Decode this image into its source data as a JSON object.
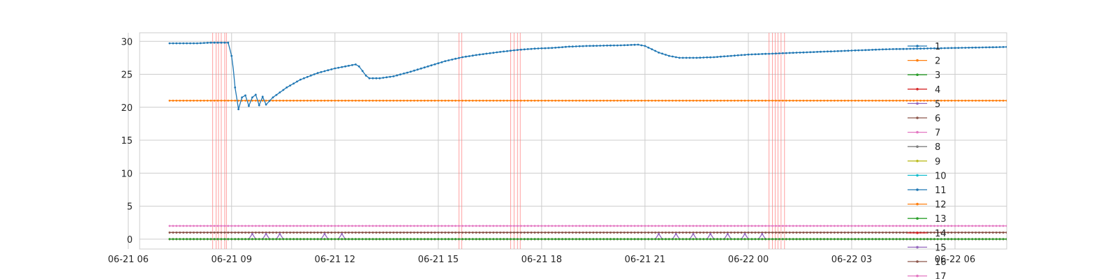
{
  "chart_data": {
    "type": "line",
    "title": "",
    "xlabel": "",
    "ylabel": "",
    "xlim_hours": [
      6.33,
      31.5
    ],
    "ylim": [
      -1.5,
      31.3
    ],
    "grid": true,
    "x_ticks": [
      {
        "label": "06-21 06",
        "hours": 6
      },
      {
        "label": "06-21 09",
        "hours": 9
      },
      {
        "label": "06-21 12",
        "hours": 12
      },
      {
        "label": "06-21 15",
        "hours": 15
      },
      {
        "label": "06-21 18",
        "hours": 18
      },
      {
        "label": "06-21 21",
        "hours": 21
      },
      {
        "label": "06-22 00",
        "hours": 24
      },
      {
        "label": "06-22 03",
        "hours": 27
      },
      {
        "label": "06-22 06",
        "hours": 30
      }
    ],
    "y_ticks": [
      {
        "label": "0",
        "value": 0
      },
      {
        "label": "5",
        "value": 5
      },
      {
        "label": "10",
        "value": 10
      },
      {
        "label": "15",
        "value": 15
      },
      {
        "label": "20",
        "value": 20
      },
      {
        "label": "25",
        "value": 25
      },
      {
        "label": "30",
        "value": 30
      }
    ],
    "event_markers_hours": [
      8.45,
      8.55,
      8.62,
      8.7,
      8.8,
      8.85,
      15.6,
      15.68,
      17.1,
      17.2,
      17.3,
      17.38,
      24.6,
      24.7,
      24.78,
      24.86,
      24.95,
      25.05
    ],
    "legend_position": "right",
    "legend_partially_clipped": true,
    "series": [
      {
        "name": "1",
        "color": "#1f77b4",
        "points": [
          [
            7.2,
            29.7
          ],
          [
            8.0,
            29.7
          ],
          [
            8.4,
            29.8
          ],
          [
            8.9,
            29.8
          ],
          [
            9.0,
            27.8
          ],
          [
            9.05,
            25.8
          ],
          [
            9.1,
            23.0
          ],
          [
            9.2,
            19.7
          ],
          [
            9.3,
            21.5
          ],
          [
            9.4,
            21.8
          ],
          [
            9.5,
            20.2
          ],
          [
            9.6,
            21.5
          ],
          [
            9.7,
            21.9
          ],
          [
            9.8,
            20.3
          ],
          [
            9.9,
            21.6
          ],
          [
            10.0,
            20.4
          ],
          [
            10.2,
            21.5
          ],
          [
            10.6,
            23.0
          ],
          [
            11.0,
            24.2
          ],
          [
            11.5,
            25.2
          ],
          [
            12.0,
            25.9
          ],
          [
            12.4,
            26.3
          ],
          [
            12.6,
            26.5
          ],
          [
            12.7,
            26.2
          ],
          [
            12.8,
            25.5
          ],
          [
            12.9,
            24.8
          ],
          [
            13.0,
            24.4
          ],
          [
            13.3,
            24.4
          ],
          [
            13.7,
            24.7
          ],
          [
            14.2,
            25.4
          ],
          [
            14.7,
            26.2
          ],
          [
            15.2,
            27.0
          ],
          [
            15.7,
            27.6
          ],
          [
            16.2,
            28.0
          ],
          [
            16.8,
            28.4
          ],
          [
            17.3,
            28.7
          ],
          [
            17.8,
            28.9
          ],
          [
            18.3,
            29.0
          ],
          [
            18.8,
            29.2
          ],
          [
            19.3,
            29.3
          ],
          [
            20.3,
            29.4
          ],
          [
            20.8,
            29.5
          ],
          [
            21.0,
            29.3
          ],
          [
            21.2,
            28.8
          ],
          [
            21.4,
            28.3
          ],
          [
            21.7,
            27.8
          ],
          [
            22.0,
            27.5
          ],
          [
            22.5,
            27.5
          ],
          [
            23.0,
            27.6
          ],
          [
            23.5,
            27.8
          ],
          [
            24.0,
            28.0
          ],
          [
            25.0,
            28.2
          ],
          [
            26.0,
            28.4
          ],
          [
            27.0,
            28.6
          ],
          [
            28.0,
            28.8
          ],
          [
            29.0,
            28.9
          ],
          [
            30.0,
            29.0
          ],
          [
            31.0,
            29.1
          ],
          [
            32.0,
            29.2
          ],
          [
            33.0,
            29.3
          ],
          [
            34.0,
            29.4
          ],
          [
            35.0,
            29.5
          ],
          [
            36.0,
            29.5
          ],
          [
            37.0,
            29.4
          ],
          [
            38.0,
            29.4
          ],
          [
            38.6,
            29.3
          ]
        ]
      },
      {
        "name": "2",
        "color": "#ff7f0e",
        "points": [
          [
            7.2,
            21.0
          ],
          [
            38.6,
            21.0
          ]
        ]
      },
      {
        "name": "3",
        "color": "#2ca02c",
        "points": [
          [
            7.2,
            0.0
          ],
          [
            38.6,
            0.0
          ]
        ]
      },
      {
        "name": "4",
        "color": "#d62728",
        "points": [
          [
            7.2,
            0.0
          ],
          [
            38.6,
            0.0
          ]
        ]
      },
      {
        "name": "5",
        "color": "#9467bd",
        "points": [
          [
            7.2,
            0.0
          ],
          [
            9.5,
            0.0
          ],
          [
            9.6,
            0.8
          ],
          [
            9.7,
            0.0
          ],
          [
            9.9,
            0.0
          ],
          [
            10.0,
            0.8
          ],
          [
            10.1,
            0.0
          ],
          [
            10.3,
            0.0
          ],
          [
            10.4,
            0.8
          ],
          [
            10.5,
            0.0
          ],
          [
            11.6,
            0.0
          ],
          [
            11.7,
            0.8
          ],
          [
            11.8,
            0.0
          ],
          [
            12.1,
            0.0
          ],
          [
            12.2,
            0.8
          ],
          [
            12.3,
            0.0
          ],
          [
            21.3,
            0.0
          ],
          [
            21.4,
            0.8
          ],
          [
            21.5,
            0.0
          ],
          [
            21.8,
            0.0
          ],
          [
            21.9,
            0.8
          ],
          [
            22.0,
            0.0
          ],
          [
            22.3,
            0.0
          ],
          [
            22.4,
            0.8
          ],
          [
            22.5,
            0.0
          ],
          [
            22.8,
            0.0
          ],
          [
            22.9,
            0.8
          ],
          [
            23.0,
            0.0
          ],
          [
            23.3,
            0.0
          ],
          [
            23.4,
            0.8
          ],
          [
            23.5,
            0.0
          ],
          [
            23.8,
            0.0
          ],
          [
            23.9,
            0.8
          ],
          [
            24.0,
            0.0
          ],
          [
            24.3,
            0.0
          ],
          [
            24.4,
            0.8
          ],
          [
            24.5,
            0.0
          ],
          [
            38.6,
            0.0
          ]
        ]
      },
      {
        "name": "6",
        "color": "#8c564b",
        "points": [
          [
            7.2,
            1.0
          ],
          [
            38.6,
            1.0
          ]
        ]
      },
      {
        "name": "7",
        "color": "#e377c2",
        "points": [
          [
            7.2,
            2.0
          ],
          [
            38.6,
            2.0
          ]
        ]
      },
      {
        "name": "8",
        "color": "#7f7f7f",
        "points": [
          [
            7.2,
            0.0
          ],
          [
            38.6,
            0.0
          ]
        ]
      },
      {
        "name": "9",
        "color": "#bcbd22",
        "points": [
          [
            7.2,
            0.0
          ],
          [
            38.6,
            0.0
          ]
        ]
      },
      {
        "name": "10",
        "color": "#17becf",
        "points": [
          [
            7.2,
            0.0
          ],
          [
            38.6,
            0.0
          ]
        ]
      },
      {
        "name": "11",
        "color": "#1f77b4",
        "points": [
          [
            7.2,
            0.0
          ],
          [
            38.6,
            0.0
          ]
        ]
      },
      {
        "name": "12",
        "color": "#ff7f0e",
        "points": [
          [
            7.2,
            0.0
          ],
          [
            38.6,
            0.0
          ]
        ]
      },
      {
        "name": "13",
        "color": "#2ca02c",
        "points": [
          [
            7.2,
            0.0
          ],
          [
            38.6,
            0.0
          ]
        ]
      },
      {
        "name": "14",
        "color": "#d62728",
        "points": [
          [
            7.2,
            0.0
          ],
          [
            38.6,
            0.0
          ]
        ]
      },
      {
        "name": "15",
        "color": "#9467bd",
        "points": [
          [
            7.2,
            0.0
          ],
          [
            38.6,
            0.0
          ]
        ]
      },
      {
        "name": "16",
        "color": "#8c564b",
        "points": [
          [
            7.2,
            1.0
          ],
          [
            38.6,
            1.0
          ]
        ]
      },
      {
        "name": "17",
        "color": "#e377c2",
        "points": [
          [
            7.2,
            1.0
          ],
          [
            38.6,
            1.0
          ]
        ]
      }
    ]
  }
}
